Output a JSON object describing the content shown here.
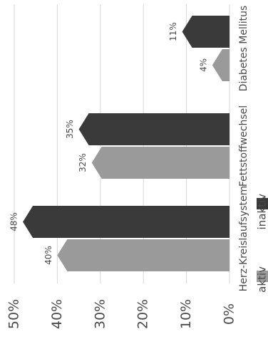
{
  "chart_data": {
    "type": "bar",
    "orientation": "vertical-axis-rotated",
    "categories": [
      "Herz-Kreislaufsystem",
      "Fettstoffwechsel",
      "Diabetes Mellitus"
    ],
    "series": [
      {
        "name": "aktiv",
        "values": [
          40,
          32,
          4
        ],
        "labels": [
          "40%",
          "32%",
          "4%"
        ]
      },
      {
        "name": "inaktiv",
        "values": [
          48,
          35,
          11
        ],
        "labels": [
          "48%",
          "35%",
          "11%"
        ]
      }
    ],
    "tick_labels": [
      "0%",
      "10%",
      "20%",
      "30%",
      "40%",
      "50%"
    ],
    "ylim": [
      0,
      50
    ],
    "grid": true,
    "legend_position": "bottom",
    "colors": {
      "aktiv": "#9a9a9a",
      "inaktiv": "#3a3a3a",
      "grid": "#d6d6d6",
      "text": "#4a4a4a"
    }
  }
}
